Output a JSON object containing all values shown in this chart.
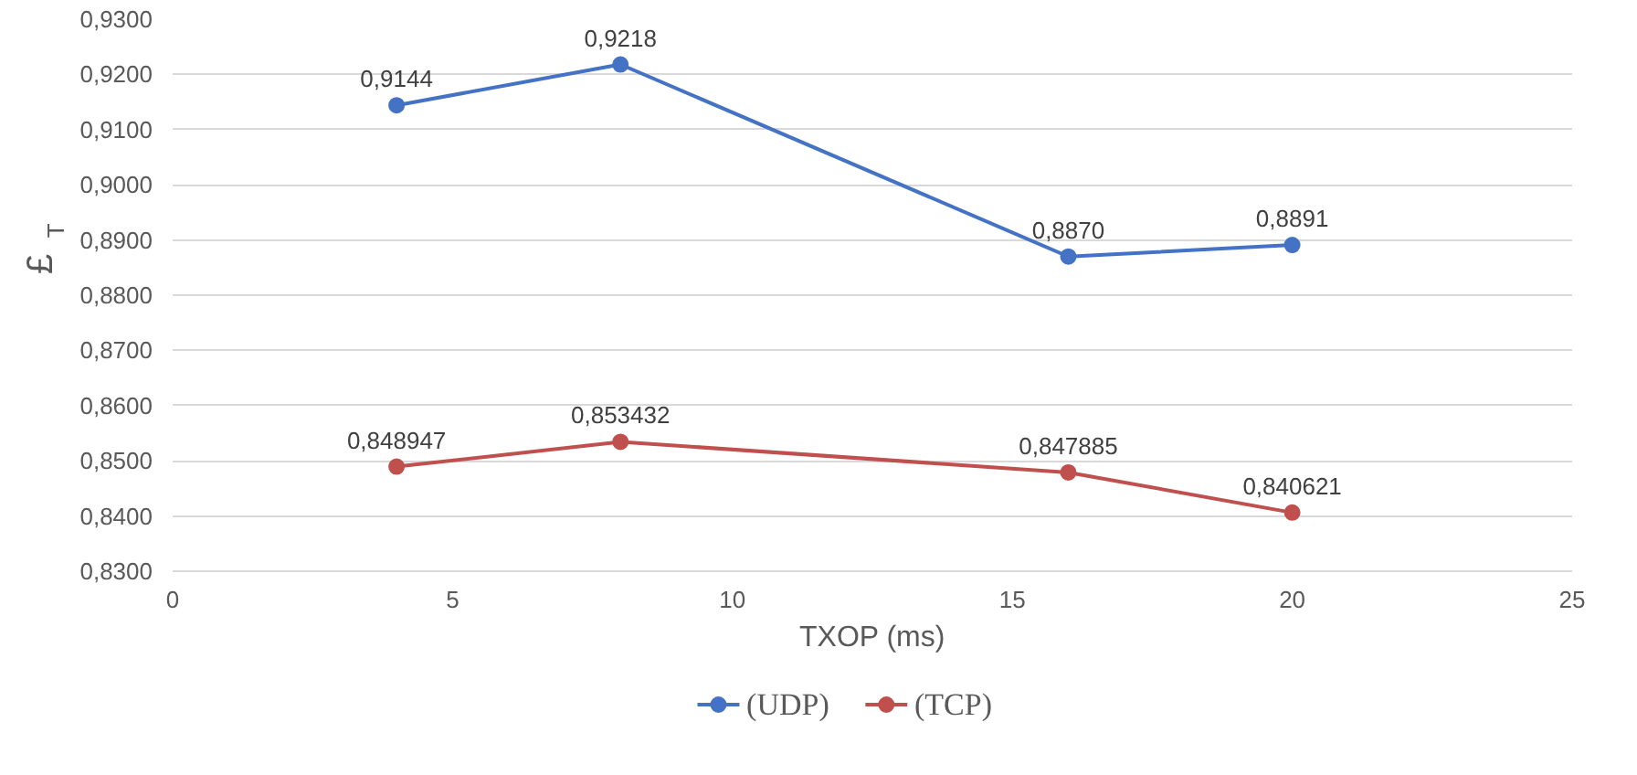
{
  "chart_data": {
    "type": "line",
    "xlabel": "TXOP (ms)",
    "ylabel": "£$_{T}$",
    "x": [
      4,
      8,
      16,
      20
    ],
    "series": [
      {
        "name": "(UDP)",
        "color": "#4472c4",
        "values": [
          0.9144,
          0.9218,
          0.887,
          0.8891
        ],
        "value_labels": [
          "0,9144",
          "0,9218",
          "0,8870",
          "0,8891"
        ]
      },
      {
        "name": "(TCP)",
        "color": "#c0504d",
        "values": [
          0.848947,
          0.853432,
          0.847885,
          0.840621
        ],
        "value_labels": [
          "0,848947",
          "0,853432",
          "0,847885",
          "0,840621"
        ]
      }
    ],
    "xlim": [
      0,
      25
    ],
    "xticks": [
      0,
      5,
      10,
      15,
      20,
      25
    ],
    "ylim": [
      0.83,
      0.93
    ],
    "yticks": [
      {
        "value": 0.83,
        "label": "0,8300"
      },
      {
        "value": 0.84,
        "label": "0,8400"
      },
      {
        "value": 0.85,
        "label": "0,8500"
      },
      {
        "value": 0.86,
        "label": "0,8600"
      },
      {
        "value": 0.87,
        "label": "0,8700"
      },
      {
        "value": 0.88,
        "label": "0,8800"
      },
      {
        "value": 0.89,
        "label": "0,8900"
      },
      {
        "value": 0.9,
        "label": "0,9000"
      },
      {
        "value": 0.91,
        "label": "0,9100"
      },
      {
        "value": 0.92,
        "label": "0,9200"
      },
      {
        "value": 0.93,
        "label": "0,9300"
      }
    ],
    "grid": "y",
    "legend": "bottom",
    "marker": "circle",
    "line_style": "solid"
  }
}
